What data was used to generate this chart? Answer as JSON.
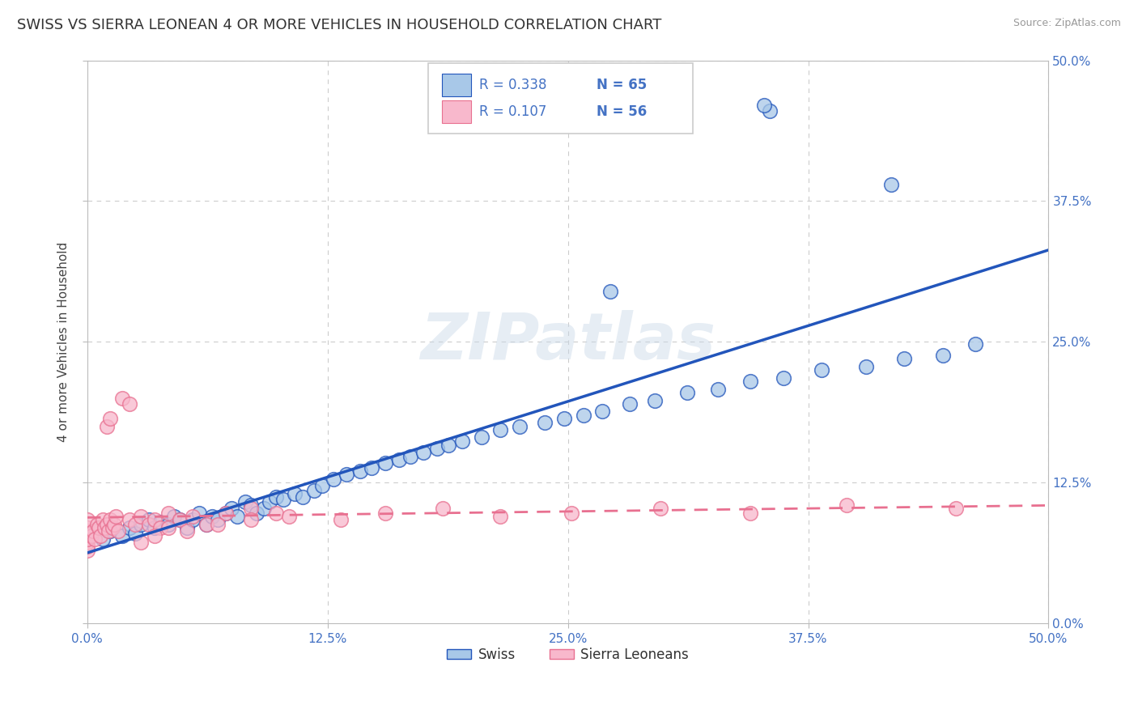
{
  "title": "SWISS VS SIERRA LEONEAN 4 OR MORE VEHICLES IN HOUSEHOLD CORRELATION CHART",
  "source": "Source: ZipAtlas.com",
  "tick_color": "#4472c4",
  "ylabel": "4 or more Vehicles in Household",
  "xlim": [
    0.0,
    0.5
  ],
  "ylim": [
    0.0,
    0.5
  ],
  "ticks": [
    0.0,
    0.125,
    0.25,
    0.375,
    0.5
  ],
  "tick_labels": [
    "0.0%",
    "12.5%",
    "25.0%",
    "37.5%",
    "50.0%"
  ],
  "swiss_color": "#a8c8e8",
  "sierra_color": "#f8b8cc",
  "swiss_line_color": "#2255bb",
  "sierra_line_color": "#e87090",
  "background_color": "#ffffff",
  "grid_color": "#cccccc",
  "title_fontsize": 13,
  "axis_label_fontsize": 11,
  "tick_fontsize": 11,
  "swiss_x": [
    0.008,
    0.012,
    0.018,
    0.022,
    0.025,
    0.028,
    0.032,
    0.035,
    0.038,
    0.042,
    0.045,
    0.048,
    0.052,
    0.055,
    0.058,
    0.062,
    0.065,
    0.068,
    0.072,
    0.075,
    0.078,
    0.082,
    0.085,
    0.088,
    0.092,
    0.095,
    0.098,
    0.102,
    0.108,
    0.112,
    0.118,
    0.122,
    0.128,
    0.135,
    0.142,
    0.148,
    0.155,
    0.162,
    0.168,
    0.175,
    0.182,
    0.188,
    0.195,
    0.205,
    0.215,
    0.225,
    0.238,
    0.248,
    0.258,
    0.268,
    0.282,
    0.295,
    0.312,
    0.328,
    0.345,
    0.362,
    0.382,
    0.405,
    0.425,
    0.445,
    0.462,
    0.352,
    0.272,
    0.158,
    0.115
  ],
  "swiss_y": [
    0.075,
    0.082,
    0.078,
    0.085,
    0.08,
    0.088,
    0.092,
    0.085,
    0.09,
    0.088,
    0.095,
    0.092,
    0.085,
    0.092,
    0.098,
    0.088,
    0.095,
    0.092,
    0.098,
    0.102,
    0.095,
    0.108,
    0.105,
    0.098,
    0.102,
    0.108,
    0.112,
    0.11,
    0.115,
    0.112,
    0.118,
    0.122,
    0.128,
    0.132,
    0.135,
    0.138,
    0.142,
    0.145,
    0.148,
    0.152,
    0.155,
    0.158,
    0.162,
    0.165,
    0.172,
    0.175,
    0.178,
    0.182,
    0.185,
    0.188,
    0.195,
    0.198,
    0.205,
    0.208,
    0.215,
    0.218,
    0.225,
    0.228,
    0.235,
    0.238,
    0.248,
    0.39,
    0.295,
    0.228,
    0.46
  ],
  "sierra_x": [
    0.0,
    0.0,
    0.0,
    0.0,
    0.0,
    0.0,
    0.0,
    0.0,
    0.002,
    0.003,
    0.004,
    0.005,
    0.006,
    0.007,
    0.008,
    0.009,
    0.01,
    0.011,
    0.012,
    0.013,
    0.014,
    0.015,
    0.016,
    0.018,
    0.02,
    0.022,
    0.025,
    0.028,
    0.032,
    0.035,
    0.038,
    0.042,
    0.048,
    0.055,
    0.062,
    0.072,
    0.085,
    0.098,
    0.015,
    0.022,
    0.028,
    0.035,
    0.042,
    0.052,
    0.068,
    0.085,
    0.105,
    0.132,
    0.155,
    0.185,
    0.215,
    0.252,
    0.298,
    0.345,
    0.395,
    0.452
  ],
  "sierra_y": [
    0.065,
    0.072,
    0.078,
    0.068,
    0.082,
    0.075,
    0.085,
    0.092,
    0.078,
    0.082,
    0.075,
    0.088,
    0.085,
    0.078,
    0.092,
    0.085,
    0.088,
    0.082,
    0.092,
    0.085,
    0.088,
    0.095,
    0.082,
    0.198,
    0.205,
    0.092,
    0.088,
    0.095,
    0.088,
    0.092,
    0.085,
    0.098,
    0.092,
    0.095,
    0.088,
    0.098,
    0.102,
    0.098,
    0.175,
    0.182,
    0.072,
    0.078,
    0.085,
    0.082,
    0.088,
    0.092,
    0.095,
    0.092,
    0.098,
    0.102,
    0.095,
    0.098,
    0.102,
    0.098,
    0.105,
    0.102
  ]
}
